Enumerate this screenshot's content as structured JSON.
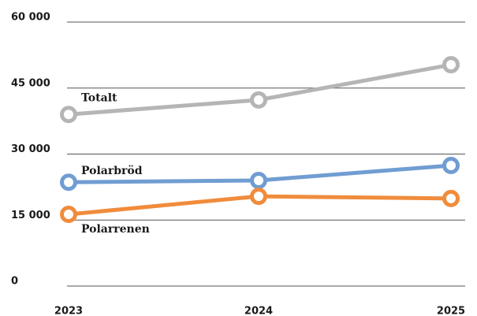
{
  "chart_data": {
    "type": "line",
    "categories": [
      "2023",
      "2024",
      "2025"
    ],
    "series": [
      {
        "name": "Totalt",
        "color": "#b5b5b5",
        "values": [
          39000,
          42300,
          50300
        ]
      },
      {
        "name": "Polarbröd",
        "color": "#709dd2",
        "values": [
          23600,
          24000,
          27400
        ]
      },
      {
        "name": "Polarrenen",
        "color": "#f08c3c",
        "values": [
          16300,
          20400,
          19900
        ]
      }
    ],
    "ylim": [
      0,
      60000
    ],
    "yticks": [
      0,
      {
        "value": 15000,
        "label": "15 000"
      },
      {
        "value": 30000,
        "label": "30 000"
      },
      {
        "value": 45000,
        "label": "45 000"
      },
      {
        "value": 60000,
        "label": "60 000"
      }
    ],
    "grid": true
  }
}
